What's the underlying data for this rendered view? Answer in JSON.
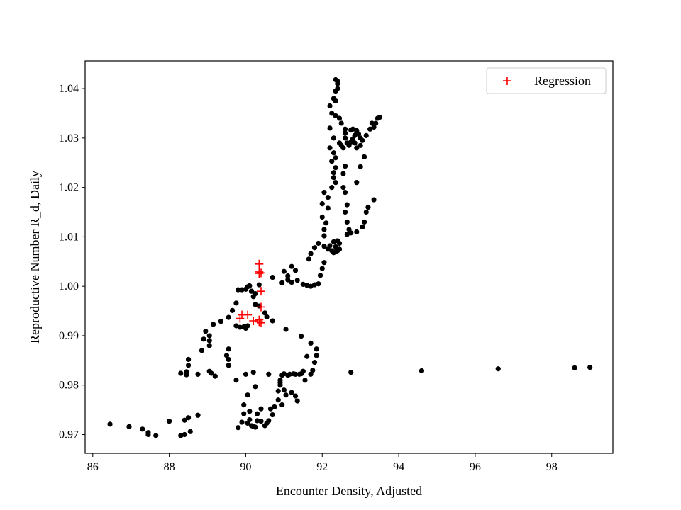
{
  "chart_data": {
    "type": "scatter",
    "title": "",
    "xlabel": "Encounter Density, Adjusted",
    "ylabel": "Reproductive Number R_d, Daily",
    "xlim": [
      85.8,
      99.6
    ],
    "ylim": [
      0.9662,
      1.0456
    ],
    "xticks": [
      86,
      88,
      90,
      92,
      94,
      96,
      98
    ],
    "yticks": [
      0.97,
      0.98,
      0.99,
      1.0,
      1.01,
      1.02,
      1.03,
      1.04
    ],
    "ytick_labels": [
      "0.97",
      "0.98",
      "0.99",
      "1.00",
      "1.01",
      "1.02",
      "1.03",
      "1.04"
    ],
    "grid": false,
    "legend": {
      "position": "top-right",
      "entries": [
        {
          "label": "Regression",
          "marker": "plus",
          "color": "#ff0000"
        }
      ]
    },
    "series": [
      {
        "marker": "dot",
        "color": "#000000",
        "points": [
          [
            86.45,
            0.9721
          ],
          [
            86.95,
            0.9716
          ],
          [
            87.3,
            0.9711
          ],
          [
            87.45,
            0.9704
          ],
          [
            87.45,
            0.97
          ],
          [
            87.65,
            0.9698
          ],
          [
            88.0,
            0.9727
          ],
          [
            88.3,
            0.9698
          ],
          [
            88.4,
            0.97
          ],
          [
            88.55,
            0.9706
          ],
          [
            88.4,
            0.9729
          ],
          [
            88.5,
            0.9734
          ],
          [
            88.75,
            0.9739
          ],
          [
            88.3,
            0.9824
          ],
          [
            88.45,
            0.9827
          ],
          [
            88.45,
            0.9821
          ],
          [
            88.5,
            0.984
          ],
          [
            88.5,
            0.9852
          ],
          [
            88.75,
            0.9822
          ],
          [
            89.05,
            0.9828
          ],
          [
            89.1,
            0.9824
          ],
          [
            89.2,
            0.9818
          ],
          [
            88.85,
            0.987
          ],
          [
            88.9,
            0.9893
          ],
          [
            88.95,
            0.9909
          ],
          [
            89.05,
            0.99
          ],
          [
            89.05,
            0.989
          ],
          [
            89.05,
            0.988
          ],
          [
            89.15,
            0.9923
          ],
          [
            89.35,
            0.9929
          ],
          [
            89.5,
            0.986
          ],
          [
            89.55,
            0.9873
          ],
          [
            89.55,
            0.9852
          ],
          [
            89.55,
            0.984
          ],
          [
            89.55,
            0.9937
          ],
          [
            89.65,
            0.9951
          ],
          [
            89.75,
            0.9966
          ],
          [
            89.75,
            0.992
          ],
          [
            89.85,
            0.9917
          ],
          [
            89.8,
            0.9993
          ],
          [
            89.9,
            0.9993
          ],
          [
            90.0,
            0.9994
          ],
          [
            90.05,
            0.9999
          ],
          [
            90.1,
            1.0001
          ],
          [
            90.15,
            0.999
          ],
          [
            90.25,
            0.9985
          ],
          [
            89.95,
            0.9918
          ],
          [
            90.0,
            0.9915
          ],
          [
            90.05,
            0.992
          ],
          [
            90.15,
            0.999
          ],
          [
            90.2,
            0.9979
          ],
          [
            90.25,
            0.9963
          ],
          [
            90.35,
            0.996
          ],
          [
            90.35,
            1.0003
          ],
          [
            90.5,
            0.9946
          ],
          [
            90.55,
            0.9938
          ],
          [
            90.7,
            0.993
          ],
          [
            90.7,
            1.0018
          ],
          [
            89.75,
            0.981
          ],
          [
            90.0,
            0.9822
          ],
          [
            90.05,
            0.978
          ],
          [
            89.95,
            0.976
          ],
          [
            90.2,
            0.9826
          ],
          [
            90.25,
            0.9797
          ],
          [
            89.95,
            0.9742
          ],
          [
            90.1,
            0.9747
          ],
          [
            90.3,
            0.9742
          ],
          [
            90.4,
            0.9752
          ],
          [
            89.8,
            0.9714
          ],
          [
            89.9,
            0.9725
          ],
          [
            90.05,
            0.9723
          ],
          [
            90.1,
            0.973
          ],
          [
            90.15,
            0.9718
          ],
          [
            90.2,
            0.9716
          ],
          [
            90.25,
            0.9715
          ],
          [
            90.3,
            0.9728
          ],
          [
            90.4,
            0.9727
          ],
          [
            90.5,
            0.9718
          ],
          [
            90.55,
            0.9723
          ],
          [
            90.6,
            0.9728
          ],
          [
            90.65,
            0.9752
          ],
          [
            90.7,
            0.974
          ],
          [
            90.75,
            0.9756
          ],
          [
            90.6,
            0.9822
          ],
          [
            90.85,
            0.977
          ],
          [
            90.85,
            0.9788
          ],
          [
            90.9,
            0.98
          ],
          [
            90.9,
            0.9805
          ],
          [
            90.9,
            0.981
          ],
          [
            90.95,
            0.976
          ],
          [
            90.95,
            0.982
          ],
          [
            91.0,
            0.979
          ],
          [
            91.0,
            0.9823
          ],
          [
            91.05,
            0.978
          ],
          [
            91.1,
            0.982
          ],
          [
            91.15,
            0.9822
          ],
          [
            91.2,
            0.9785
          ],
          [
            91.25,
            0.9823
          ],
          [
            91.3,
            0.9778
          ],
          [
            91.3,
            0.9822
          ],
          [
            91.4,
            0.9822
          ],
          [
            91.35,
            0.9768
          ],
          [
            91.45,
            0.9823
          ],
          [
            91.05,
            0.9913
          ],
          [
            91.5,
            0.9828
          ],
          [
            91.55,
            0.981
          ],
          [
            91.6,
            0.9858
          ],
          [
            91.7,
            0.9822
          ],
          [
            91.75,
            0.983
          ],
          [
            91.8,
            0.9846
          ],
          [
            91.85,
            0.986
          ],
          [
            91.85,
            0.9873
          ],
          [
            91.7,
            0.9885
          ],
          [
            91.45,
            0.9899
          ],
          [
            90.95,
            1.0007
          ],
          [
            91.0,
            1.003
          ],
          [
            91.1,
            1.0021
          ],
          [
            91.1,
            1.0013
          ],
          [
            91.2,
            1.0008
          ],
          [
            91.2,
            1.004
          ],
          [
            91.3,
            1.0032
          ],
          [
            91.35,
            1.0012
          ],
          [
            91.5,
            1.0004
          ],
          [
            91.6,
            1.0002
          ],
          [
            91.7,
            1.0
          ],
          [
            91.8,
            1.0003
          ],
          [
            91.9,
            1.0005
          ],
          [
            91.95,
            1.0022
          ],
          [
            92.0,
            1.0036
          ],
          [
            92.05,
            1.0048
          ],
          [
            91.65,
            1.0055
          ],
          [
            91.7,
            1.0066
          ],
          [
            91.8,
            1.0078
          ],
          [
            91.9,
            1.0087
          ],
          [
            92.05,
            1.0102
          ],
          [
            92.05,
            1.0115
          ],
          [
            92.0,
            1.014
          ],
          [
            92.1,
            1.0128
          ],
          [
            92.15,
            1.0158
          ],
          [
            92.0,
            1.0167
          ],
          [
            92.15,
            1.018
          ],
          [
            92.05,
            1.019
          ],
          [
            92.25,
            1.02
          ],
          [
            92.35,
            1.021
          ],
          [
            92.3,
            1.022
          ],
          [
            92.3,
            1.023
          ],
          [
            92.05,
            1.0081
          ],
          [
            92.15,
            1.0075
          ],
          [
            92.25,
            1.0072
          ],
          [
            92.3,
            1.0068
          ],
          [
            92.35,
            1.007
          ],
          [
            92.4,
            1.0072
          ],
          [
            92.45,
            1.0075
          ],
          [
            92.45,
            1.0087
          ],
          [
            92.4,
            1.0092
          ],
          [
            92.35,
            1.008
          ],
          [
            92.2,
            1.0082
          ],
          [
            92.3,
            1.009
          ],
          [
            92.35,
            1.024
          ],
          [
            92.25,
            1.0253
          ],
          [
            92.2,
            1.028
          ],
          [
            92.3,
            1.027
          ],
          [
            92.35,
            1.026
          ],
          [
            92.2,
            1.032
          ],
          [
            92.3,
            1.03
          ],
          [
            92.25,
            1.035
          ],
          [
            92.2,
            1.0365
          ],
          [
            92.35,
            1.0375
          ],
          [
            92.3,
            1.038
          ],
          [
            92.35,
            1.0395
          ],
          [
            92.4,
            1.04
          ],
          [
            92.4,
            1.041
          ],
          [
            92.4,
            1.0415
          ],
          [
            92.35,
            1.0418
          ],
          [
            92.35,
            1.0345
          ],
          [
            92.45,
            1.034
          ],
          [
            92.5,
            1.033
          ],
          [
            92.6,
            1.0318
          ],
          [
            92.45,
            1.029
          ],
          [
            92.5,
            1.0285
          ],
          [
            92.55,
            1.028
          ],
          [
            92.6,
            1.03
          ],
          [
            92.6,
            1.031
          ],
          [
            92.65,
            1.029
          ],
          [
            92.7,
            1.0285
          ],
          [
            92.75,
            1.0292
          ],
          [
            92.8,
            1.0298
          ],
          [
            92.85,
            1.0305
          ],
          [
            92.9,
            1.031
          ],
          [
            92.95,
            1.0308
          ],
          [
            93.0,
            1.03
          ],
          [
            93.05,
            1.0295
          ],
          [
            93.0,
            1.0285
          ],
          [
            92.9,
            1.028
          ],
          [
            92.85,
            1.029
          ],
          [
            92.75,
            1.0316
          ],
          [
            92.8,
            1.0318
          ],
          [
            92.9,
            1.0315
          ],
          [
            93.1,
            1.0262
          ],
          [
            93.25,
            1.0318
          ],
          [
            93.3,
            1.033
          ],
          [
            93.35,
            1.0322
          ],
          [
            93.4,
            1.033
          ],
          [
            93.45,
            1.034
          ],
          [
            93.5,
            1.0342
          ],
          [
            93.15,
            1.0305
          ],
          [
            92.6,
            1.0243
          ],
          [
            92.55,
            1.0228
          ],
          [
            92.55,
            1.02
          ],
          [
            92.6,
            1.019
          ],
          [
            92.65,
            1.0165
          ],
          [
            92.6,
            1.015
          ],
          [
            92.65,
            1.013
          ],
          [
            92.7,
            1.0115
          ],
          [
            92.65,
            1.0105
          ],
          [
            92.75,
            1.0108
          ],
          [
            92.9,
            1.011
          ],
          [
            93.05,
            1.012
          ],
          [
            93.1,
            1.013
          ],
          [
            93.15,
            1.015
          ],
          [
            93.2,
            1.016
          ],
          [
            93.35,
            1.0175
          ],
          [
            92.9,
            1.021
          ],
          [
            93.0,
            1.0242
          ],
          [
            92.75,
            0.9826
          ],
          [
            94.6,
            0.9829
          ],
          [
            96.6,
            0.9833
          ],
          [
            98.6,
            0.9835
          ],
          [
            99.0,
            0.9836
          ]
        ]
      },
      {
        "name": "Regression",
        "marker": "plus",
        "color": "#ff0000",
        "points": [
          [
            90.35,
            1.0045
          ],
          [
            90.35,
            1.0029
          ],
          [
            90.35,
            1.0026
          ],
          [
            90.4,
            1.0027
          ],
          [
            90.4,
            0.999
          ],
          [
            90.4,
            0.9958
          ],
          [
            89.9,
            0.9942
          ],
          [
            90.05,
            0.9942
          ],
          [
            89.85,
            0.9935
          ],
          [
            90.2,
            0.993
          ],
          [
            90.35,
            0.9928
          ],
          [
            90.4,
            0.9926
          ],
          [
            90.35,
            0.9932
          ]
        ]
      }
    ]
  }
}
